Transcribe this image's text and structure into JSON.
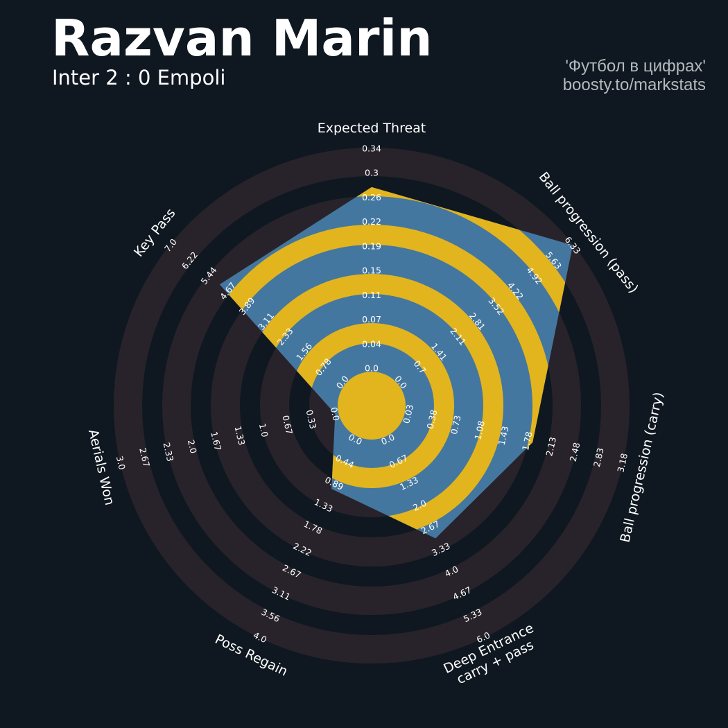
{
  "header": {
    "title": "Razvan Marin",
    "subtitle": "Inter 2 : 0 Empoli",
    "credit_line1": "'Футбол в цифрах'",
    "credit_line2": "boosty.to/markstats"
  },
  "colors": {
    "background": "#0f1820",
    "ring": "#28232a",
    "polygon": "#4477a0",
    "polygon_alt": "#e2b51e",
    "text": "#ffffff",
    "credit": "#b4b9bd"
  },
  "chart_data": {
    "type": "radar",
    "params": [
      {
        "label": [
          "Expected Threat"
        ],
        "value": 0.28,
        "ticks": [
          "0.0",
          "0.04",
          "0.07",
          "0.11",
          "0.15",
          "0.19",
          "0.22",
          "0.26",
          "0.3",
          "0.34"
        ],
        "range": [
          0.0,
          0.34
        ]
      },
      {
        "label": [
          "Ball progression (pass)"
        ],
        "value": 6.33,
        "ticks": [
          "0.0",
          "0.7",
          "1.41",
          "2.11",
          "2.81",
          "3.52",
          "4.22",
          "4.92",
          "5.63",
          "6.33"
        ],
        "range": [
          0.0,
          6.33
        ]
      },
      {
        "label": [
          "Ball progression (carry)"
        ],
        "value": 1.86,
        "ticks": [
          "0.03",
          "0.38",
          "0.73",
          "1.08",
          "1.43",
          "1.78",
          "2.13",
          "2.48",
          "2.83",
          "3.18"
        ],
        "range": [
          0.03,
          3.18
        ]
      },
      {
        "label": [
          "Deep Entrance",
          "carry + pass"
        ],
        "value": 3.0,
        "ticks": [
          "0.0",
          "0.67",
          "1.33",
          "2.0",
          "2.67",
          "3.33",
          "4.0",
          "4.67",
          "5.33",
          "6.0"
        ],
        "range": [
          0.0,
          6.0
        ]
      },
      {
        "label": [
          "Poss Regain"
        ],
        "value": 1.0,
        "ticks": [
          "0.0",
          "0.44",
          "0.89",
          "1.33",
          "1.78",
          "2.22",
          "2.67",
          "3.11",
          "3.56",
          "4.0"
        ],
        "range": [
          0.0,
          4.0
        ]
      },
      {
        "label": [
          "Aerials Won"
        ],
        "value": 0.0,
        "ticks": [
          "0.0",
          "0.33",
          "0.67",
          "1.0",
          "1.33",
          "1.67",
          "2.0",
          "2.33",
          "2.67",
          "3.0"
        ],
        "range": [
          0.0,
          3.0
        ]
      },
      {
        "label": [
          "Key Pass"
        ],
        "value": 5.0,
        "ticks": [
          "0.0",
          "0.78",
          "1.56",
          "2.33",
          "3.11",
          "3.89",
          "4.67",
          "5.44",
          "6.22",
          "7.0"
        ],
        "range": [
          0.0,
          7.0
        ]
      }
    ]
  }
}
